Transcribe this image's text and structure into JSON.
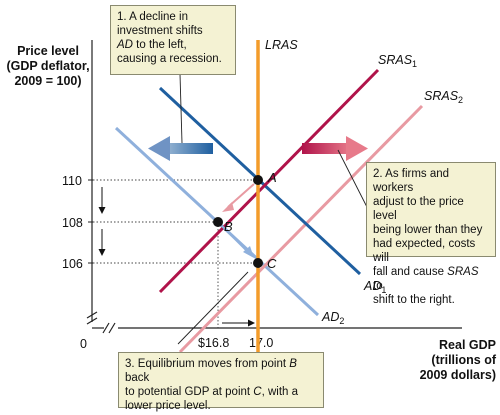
{
  "y_axis_title": [
    "Price level",
    "(GDP deflator,",
    "2009 = 100)"
  ],
  "x_axis_title": [
    "Real GDP",
    "(trillions of",
    "2009 dollars)"
  ],
  "origin_label": "0",
  "y_ticks": [
    "110",
    "108",
    "106"
  ],
  "x_ticks": [
    "$16.8",
    "17.0"
  ],
  "curves": {
    "lras": "LRAS",
    "sras1": {
      "main": "SRAS",
      "sub": "1"
    },
    "sras2": {
      "main": "SRAS",
      "sub": "2"
    },
    "ad1": {
      "main": "AD",
      "sub": "1"
    },
    "ad2": {
      "main": "AD",
      "sub": "2"
    }
  },
  "points": {
    "a": "A",
    "b": "B",
    "c": "C"
  },
  "notes": {
    "note1": {
      "l1": "1.  A decline in",
      "l2": "investment shifts",
      "l3_em": "AD",
      "l3": " to the left,",
      "l4": "causing a recession."
    },
    "note2": {
      "l1": "2. As firms and workers",
      "l2": "adjust to the price level",
      "l3": "being lower than they",
      "l4": "had expected, costs will",
      "l5a": "fall and cause ",
      "l5_em": "SRAS",
      "l5b": " to",
      "l6": "shift to the right."
    },
    "note3": {
      "l1": "3. Equilibrium moves from point ",
      "l1_em": "B",
      "l1b": " back",
      "l2": "to potential GDP at point ",
      "l2_em": "C",
      "l2b": ", with a",
      "l3": "lower price level."
    }
  },
  "colors": {
    "lras": "#f39c2a",
    "sras1": "#b0134a",
    "sras2": "#e89aa2",
    "ad1": "#1f5fa0",
    "ad2": "#8fb0dc",
    "note_bg": "#f4f2d3"
  }
}
